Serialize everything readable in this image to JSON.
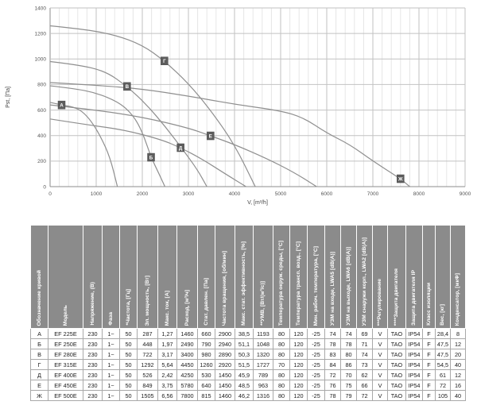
{
  "chart_data": {
    "type": "line",
    "title": "",
    "xlabel": "V, [m³/h]",
    "ylabel": "Pst, [Па]",
    "xlim": [
      0,
      9000
    ],
    "ylim": [
      0,
      1400
    ],
    "x_ticks": [
      0,
      1000,
      2000,
      3000,
      4000,
      5000,
      6000,
      7000,
      8000,
      9000
    ],
    "y_ticks": [
      0,
      200,
      400,
      600,
      800,
      1000,
      1200,
      1400
    ],
    "x_minor_step": 200,
    "grid": true,
    "legend_position": "on-curve-markers",
    "series": [
      {
        "name": "А",
        "marker": [
          250,
          640
        ],
        "points": [
          [
            0,
            660
          ],
          [
            250,
            640
          ],
          [
            500,
            625
          ],
          [
            700,
            590
          ],
          [
            900,
            510
          ],
          [
            1100,
            390
          ],
          [
            1300,
            230
          ],
          [
            1460,
            0
          ]
        ]
      },
      {
        "name": "Б",
        "marker": [
          2190,
          230
        ],
        "points": [
          [
            0,
            790
          ],
          [
            500,
            770
          ],
          [
            1000,
            735
          ],
          [
            1500,
            660
          ],
          [
            1800,
            560
          ],
          [
            2000,
            430
          ],
          [
            2190,
            230
          ],
          [
            2350,
            110
          ],
          [
            2490,
            0
          ]
        ]
      },
      {
        "name": "В",
        "marker": [
          1670,
          785
        ],
        "points": [
          [
            0,
            980
          ],
          [
            600,
            955
          ],
          [
            1200,
            905
          ],
          [
            1670,
            785
          ],
          [
            2100,
            640
          ],
          [
            2500,
            470
          ],
          [
            2900,
            280
          ],
          [
            3200,
            130
          ],
          [
            3400,
            0
          ]
        ]
      },
      {
        "name": "Г",
        "marker": [
          2480,
          985
        ],
        "points": [
          [
            0,
            1260
          ],
          [
            700,
            1235
          ],
          [
            1400,
            1190
          ],
          [
            2000,
            1110
          ],
          [
            2480,
            985
          ],
          [
            3000,
            810
          ],
          [
            3500,
            590
          ],
          [
            4000,
            330
          ],
          [
            4450,
            0
          ]
        ]
      },
      {
        "name": "Д",
        "marker": [
          2830,
          305
        ],
        "points": [
          [
            0,
            530
          ],
          [
            800,
            485
          ],
          [
            1600,
            445
          ],
          [
            2400,
            370
          ],
          [
            2830,
            305
          ],
          [
            3300,
            215
          ],
          [
            3800,
            100
          ],
          [
            4250,
            0
          ]
        ]
      },
      {
        "name": "Е",
        "marker": [
          3480,
          398
        ],
        "points": [
          [
            0,
            640
          ],
          [
            1000,
            600
          ],
          [
            2000,
            545
          ],
          [
            3000,
            460
          ],
          [
            3480,
            398
          ],
          [
            4000,
            330
          ],
          [
            4700,
            220
          ],
          [
            5300,
            110
          ],
          [
            5780,
            0
          ]
        ]
      },
      {
        "name": "Ж",
        "marker": [
          7600,
          62
        ],
        "points": [
          [
            0,
            815
          ],
          [
            1000,
            795
          ],
          [
            2000,
            765
          ],
          [
            3000,
            710
          ],
          [
            4000,
            645
          ],
          [
            5000,
            595
          ],
          [
            5500,
            540
          ],
          [
            6000,
            420
          ],
          [
            6500,
            330
          ],
          [
            7000,
            200
          ],
          [
            7600,
            62
          ],
          [
            7800,
            0
          ]
        ]
      }
    ],
    "colors": {
      "curve": "#8f8f8f",
      "marker_bg": "#5d5d5d",
      "marker_text": "#ffffff",
      "grid_minor": "#e6e6e6",
      "grid_major": "#c2c2c2",
      "axis": "#8d8d8d",
      "tick_text": "#555555"
    }
  },
  "table": {
    "columns": [
      "Обозначение кривой",
      "Модель",
      "Напряжение, (В)",
      "Фаза",
      "*Частота, [Гц]",
      "Эл. мощность, [Вт]",
      "Макс. ток, [А]",
      "Расход, [м³/ч]",
      "Стат. давлен. [Па]",
      "Частота вращения, [об/мин]",
      "Макс. стат. эффективность, [%]",
      "**УМВ, [Вт/(м³/с)]",
      "Температура окруж. среды, [°C]",
      "Температура трансп. возд., [°C]",
      "Мин. рабоч. температура, [°C]",
      "УЗМ на входе, LWA5 [dB(A)]",
      "УЗМ на выходе, LWA6 [dB(A)]",
      "УЗМ снаружи корп., LWA2 [dB(A)]",
      "***Регулирование",
      "****Защита двигателя",
      "Защита двигателя IP",
      "Класс изоляции",
      "Вес, [кг]",
      "Конденсатор, [мкФ]"
    ],
    "rows": [
      [
        "А",
        "EF 225E",
        "230",
        "1~",
        "50",
        "287",
        "1,27",
        "1460",
        "660",
        "2900",
        "38,5",
        "1193",
        "80",
        "120",
        "-25",
        "74",
        "74",
        "69",
        "V",
        "TAO",
        "IP54",
        "F",
        "28,4",
        "8"
      ],
      [
        "Б",
        "EF 250E",
        "230",
        "1~",
        "50",
        "448",
        "1,97",
        "2490",
        "790",
        "2940",
        "51,1",
        "1048",
        "80",
        "120",
        "-25",
        "78",
        "78",
        "71",
        "V",
        "TAO",
        "IP54",
        "F",
        "47,5",
        "12"
      ],
      [
        "В",
        "EF 280E",
        "230",
        "1~",
        "50",
        "722",
        "3,17",
        "3400",
        "980",
        "2890",
        "50,3",
        "1320",
        "80",
        "120",
        "-25",
        "83",
        "80",
        "74",
        "V",
        "TAO",
        "IP54",
        "F",
        "47,5",
        "20"
      ],
      [
        "Г",
        "EF 315E",
        "230",
        "1~",
        "50",
        "1292",
        "5,64",
        "4450",
        "1260",
        "2920",
        "51,5",
        "1727",
        "70",
        "120",
        "-25",
        "84",
        "86",
        "73",
        "V",
        "TAO",
        "IP54",
        "F",
        "54,5",
        "40"
      ],
      [
        "Д",
        "EF 400E",
        "230",
        "1~",
        "50",
        "526",
        "2,42",
        "4250",
        "530",
        "1450",
        "45,9",
        "789",
        "80",
        "120",
        "-25",
        "72",
        "70",
        "62",
        "V",
        "TAO",
        "IP54",
        "F",
        "61",
        "12"
      ],
      [
        "Е",
        "EF 450E",
        "230",
        "1~",
        "50",
        "849",
        "3,75",
        "5780",
        "640",
        "1450",
        "48,5",
        "963",
        "80",
        "120",
        "-25",
        "76",
        "75",
        "66",
        "V",
        "TAO",
        "IP54",
        "F",
        "72",
        "16"
      ],
      [
        "Ж",
        "EF 500E",
        "230",
        "1~",
        "50",
        "1505",
        "6,56",
        "7800",
        "815",
        "1460",
        "46,2",
        "1316",
        "80",
        "120",
        "-25",
        "78",
        "79",
        "72",
        "V",
        "TAO",
        "IP54",
        "F",
        "105",
        "40"
      ]
    ]
  }
}
